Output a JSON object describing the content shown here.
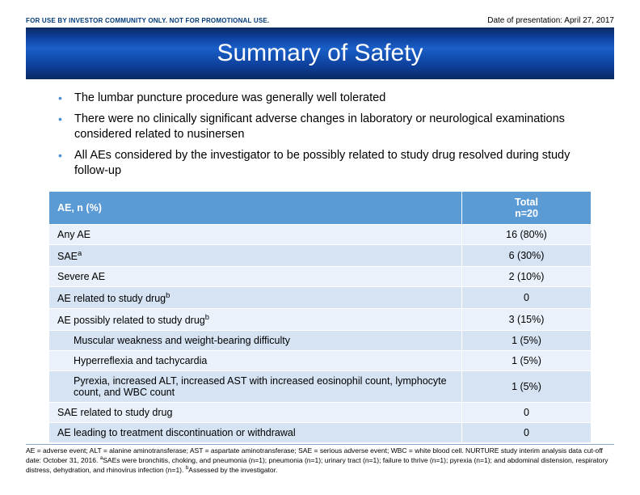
{
  "header": {
    "disclaimer": "FOR USE BY INVESTOR COMMUNITY ONLY.  NOT FOR PROMOTIONAL USE.",
    "date": "Date of presentation: April 27, 2017"
  },
  "title": "Summary of Safety",
  "bullets": [
    "The lumbar puncture procedure was generally well tolerated",
    "There were no clinically significant adverse changes in laboratory or neurological examinations considered related to nusinersen",
    "All AEs considered by the investigator to be possibly related to study drug resolved during study follow-up"
  ],
  "table": {
    "header_left": "AE, n (%)",
    "header_right_l1": "Total",
    "header_right_l2": "n=20",
    "rows": [
      {
        "label": "Any AE",
        "value": "16 (80%)",
        "indent": false
      },
      {
        "label_html": "SAE<sup>a</sup>",
        "value": "6 (30%)",
        "indent": false
      },
      {
        "label": "Severe AE",
        "value": "2 (10%)",
        "indent": false
      },
      {
        "label_html": "AE related to study drug<sup>b</sup>",
        "value": "0",
        "indent": false
      },
      {
        "label_html": "AE possibly related to study drug<sup>b</sup>",
        "value": "3 (15%)",
        "indent": false
      },
      {
        "label": "Muscular weakness and weight-bearing difficulty",
        "value": "1 (5%)",
        "indent": true
      },
      {
        "label": "Hyperreflexia and tachycardia",
        "value": "1 (5%)",
        "indent": true
      },
      {
        "label": "Pyrexia, increased ALT, increased AST with increased eosinophil count, lymphocyte count, and WBC count",
        "value": "1 (5%)",
        "indent": true
      },
      {
        "label": "SAE related to study drug",
        "value": "0",
        "indent": false
      },
      {
        "label": "AE leading to treatment discontinuation or withdrawal",
        "value": "0",
        "indent": false
      }
    ],
    "row_band_colors": [
      "#eaf1fa",
      "#d5e3f3"
    ],
    "header_bg": "#5b9bd5",
    "header_fg": "#ffffff"
  },
  "footnote_html": "AE = adverse event; ALT = alanine aminotransferase; AST = aspartate aminotransferase; SAE = serious adverse event; WBC = white blood cell. NURTURE study interim analysis data cut-off date: October 31, 2016. <sup>a</sup>SAEs were bronchitis, choking, and pneumonia (n=1); pneumonia (n=1); urinary tract (n=1); failure to thrive (n=1); pyrexia (n=1); and abdominal distension, respiratory distress, dehydration, and rhinovirus infection (n=1). <sup>b</sup>Assessed by the investigator.",
  "colors": {
    "bullet_marker": "#4a8fd6",
    "separator": "#8aa7c7",
    "title_gradient": [
      "#0a2a62",
      "#0d3f9a",
      "#1a5fc8",
      "#0d3f9a",
      "#0a2a62"
    ]
  }
}
